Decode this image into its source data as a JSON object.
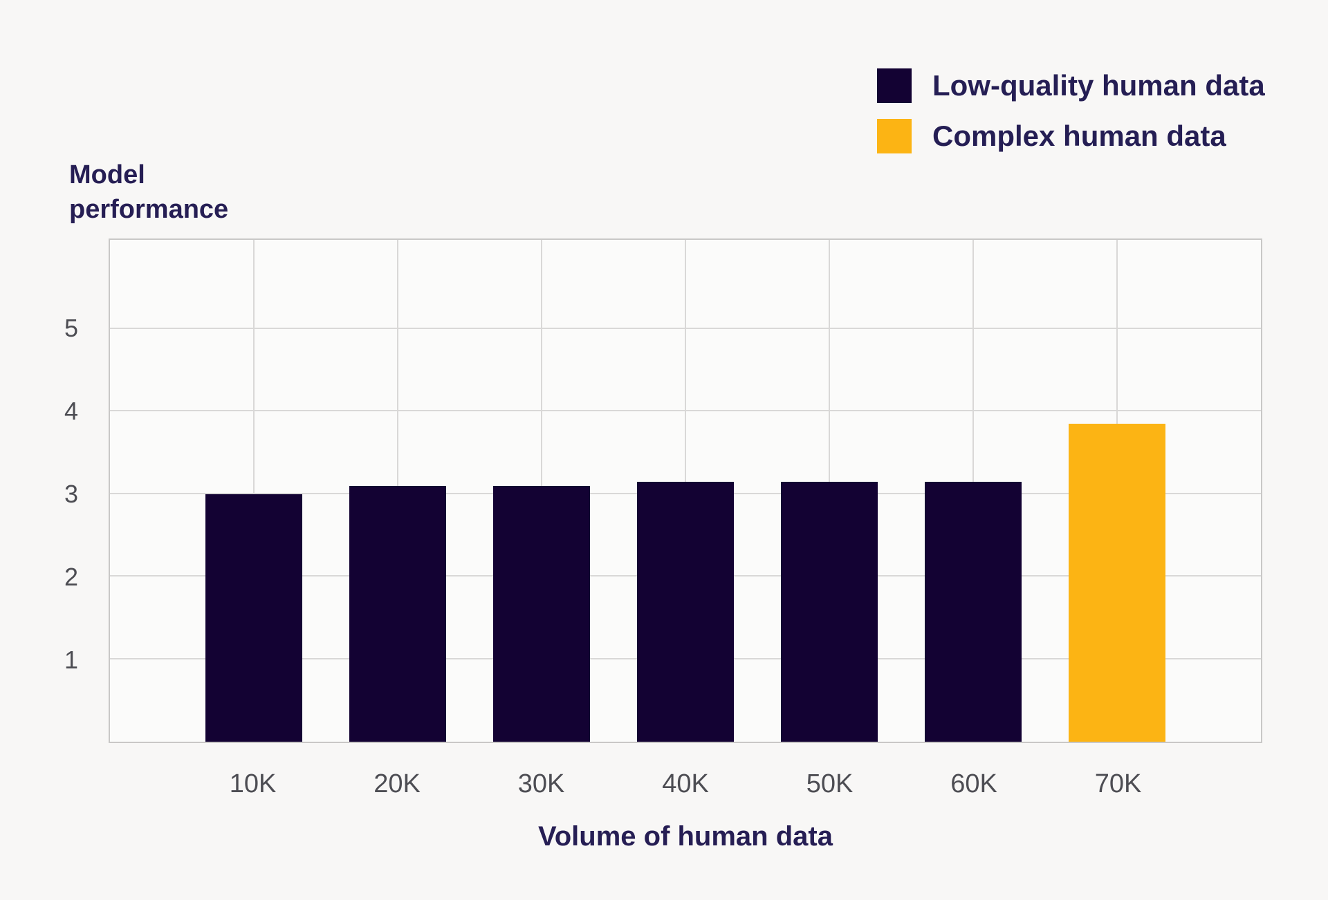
{
  "page": {
    "background_color": "#f8f7f6"
  },
  "legend": {
    "items": [
      {
        "label": "Low-quality human data",
        "color": "#130233"
      },
      {
        "label": "Complex human data",
        "color": "#fcb414"
      }
    ]
  },
  "chart_data": {
    "type": "bar",
    "title": "",
    "ylabel": "Model performance",
    "xlabel": "Volume of human data",
    "categories": [
      "10K",
      "20K",
      "30K",
      "40K",
      "50K",
      "60K",
      "70K"
    ],
    "series": [
      {
        "name": "Low-quality human data",
        "color": "#130233",
        "values": [
          3.0,
          3.1,
          3.1,
          3.15,
          3.15,
          3.15,
          null
        ]
      },
      {
        "name": "Complex human data",
        "color": "#fcb414",
        "values": [
          null,
          null,
          null,
          null,
          null,
          null,
          3.85
        ]
      }
    ],
    "yticks": [
      1,
      2,
      3,
      4,
      5
    ],
    "ylim": [
      0,
      6.08
    ],
    "grid": true,
    "gridline_color": "#d9d8d7",
    "plot_border_color": "#c9c8c7",
    "legend_position": "top-right"
  }
}
